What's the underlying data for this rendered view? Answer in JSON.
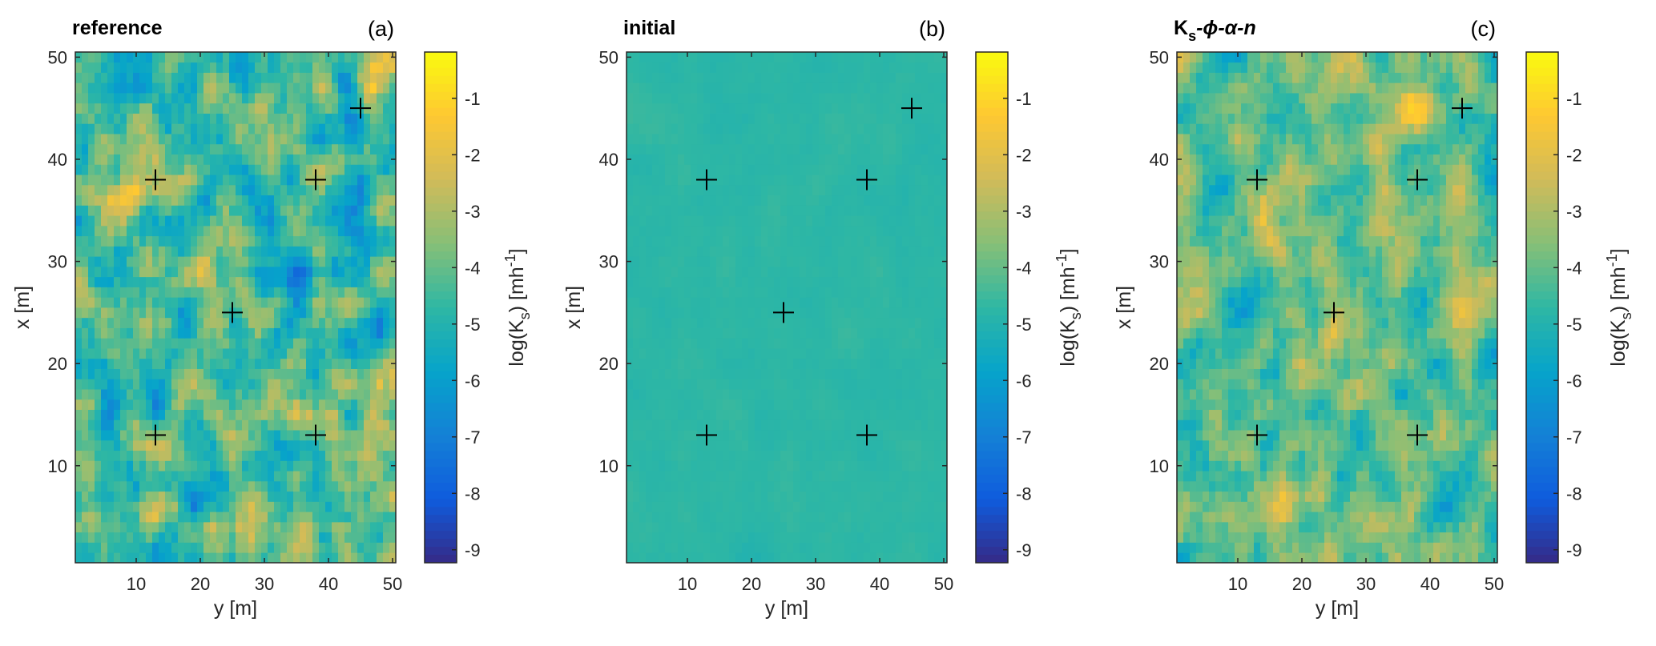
{
  "chart_data": [
    {
      "type": "heatmap",
      "title": "reference",
      "panel_label": "(a)",
      "xlabel": "y [m]",
      "ylabel": "x [m]",
      "xlim": [
        0.5,
        50.5
      ],
      "ylim": [
        0.5,
        50.5
      ],
      "xticks": [
        "10",
        "20",
        "30",
        "40",
        "50"
      ],
      "yticks": [
        "10",
        "20",
        "30",
        "40",
        "50"
      ],
      "grid_size": [
        50,
        50
      ],
      "field": {
        "mean": -4.4,
        "std": 0.95,
        "smooth_passes": 2,
        "seed": 11
      },
      "markers": [
        {
          "x": 45,
          "y": 45
        },
        {
          "x": 38,
          "y": 13
        },
        {
          "x": 38,
          "y": 38
        },
        {
          "x": 25,
          "y": 25
        },
        {
          "x": 13,
          "y": 13
        },
        {
          "x": 13,
          "y": 38
        }
      ],
      "colorbar": {
        "label_parts": [
          "log(K",
          "s",
          ") [mh",
          "-1",
          "]"
        ],
        "ticks": [
          "-1",
          "-2",
          "-3",
          "-4",
          "-5",
          "-6",
          "-7",
          "-8",
          "-9"
        ],
        "tick_values": [
          -1,
          -2,
          -3,
          -4,
          -5,
          -6,
          -7,
          -8,
          -9
        ],
        "range": [
          -9.23,
          -0.18
        ],
        "colormap": "parula"
      }
    },
    {
      "type": "heatmap",
      "title": "initial",
      "panel_label": "(b)",
      "xlabel": "y [m]",
      "ylabel": "x [m]",
      "xlim": [
        0.5,
        50.5
      ],
      "ylim": [
        0.5,
        50.5
      ],
      "xticks": [
        "10",
        "20",
        "30",
        "40",
        "50"
      ],
      "yticks": [
        "10",
        "20",
        "30",
        "40",
        "50"
      ],
      "grid_size": [
        50,
        50
      ],
      "field": {
        "mean": -4.75,
        "std": 0.07,
        "smooth_passes": 3,
        "seed": 23
      },
      "markers": [
        {
          "x": 45,
          "y": 45
        },
        {
          "x": 38,
          "y": 13
        },
        {
          "x": 38,
          "y": 38
        },
        {
          "x": 25,
          "y": 25
        },
        {
          "x": 13,
          "y": 13
        },
        {
          "x": 13,
          "y": 38
        }
      ],
      "colorbar": {
        "label_parts": [
          "log(K",
          "s",
          ") [mh",
          "-1",
          "]"
        ],
        "ticks": [
          "-1",
          "-2",
          "-3",
          "-4",
          "-5",
          "-6",
          "-7",
          "-8",
          "-9"
        ],
        "tick_values": [
          -1,
          -2,
          -3,
          -4,
          -5,
          -6,
          -7,
          -8,
          -9
        ],
        "range": [
          -9.23,
          -0.18
        ],
        "colormap": "parula"
      }
    },
    {
      "type": "heatmap",
      "title_parts": [
        "K",
        "s",
        "-ϕ-α-n"
      ],
      "panel_label": "(c)",
      "xlabel": "y [m]",
      "ylabel": "x [m]",
      "xlim": [
        0.5,
        50.5
      ],
      "ylim": [
        0.5,
        50.5
      ],
      "xticks": [
        "10",
        "20",
        "30",
        "40",
        "50"
      ],
      "yticks": [
        "10",
        "20",
        "30",
        "40",
        "50"
      ],
      "grid_size": [
        50,
        50
      ],
      "field": {
        "mean": -4.0,
        "std": 0.75,
        "smooth_passes": 2,
        "seed": 37
      },
      "markers": [
        {
          "x": 45,
          "y": 45
        },
        {
          "x": 38,
          "y": 13
        },
        {
          "x": 38,
          "y": 38
        },
        {
          "x": 25,
          "y": 25
        },
        {
          "x": 13,
          "y": 13
        },
        {
          "x": 13,
          "y": 38
        }
      ],
      "colorbar": {
        "label_parts": [
          "log(K",
          "s",
          ") [mh",
          "-1",
          "]"
        ],
        "ticks": [
          "-1",
          "-2",
          "-3",
          "-4",
          "-5",
          "-6",
          "-7",
          "-8",
          "-9"
        ],
        "tick_values": [
          -1,
          -2,
          -3,
          -4,
          -5,
          -6,
          -7,
          -8,
          -9
        ],
        "range": [
          -9.23,
          -0.18
        ],
        "colormap": "parula"
      }
    }
  ]
}
